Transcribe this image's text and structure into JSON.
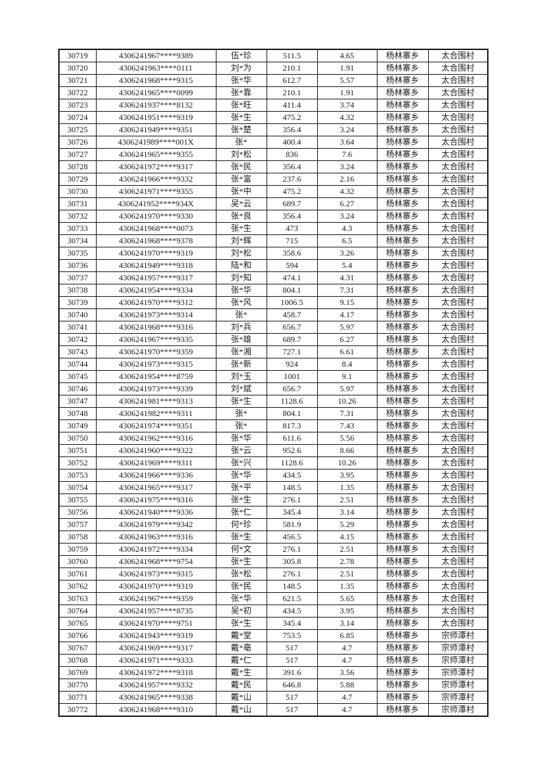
{
  "page": {
    "background_color": "#ffffff",
    "border_color": "#1a1a1a"
  },
  "table": {
    "township_name": "杨林寨乡",
    "villages": [
      "太合围村",
      "宗师潭村"
    ],
    "rows": [
      [
        "30719",
        "4306241967****9389",
        "伍*珍",
        "511.5",
        "4.65",
        "杨林寨乡",
        "太合围村"
      ],
      [
        "30720",
        "4306241963****0111",
        "刘*为",
        "210.1",
        "1.91",
        "杨林寨乡",
        "太合围村"
      ],
      [
        "30721",
        "4306241968****9315",
        "张*华",
        "612.7",
        "5.57",
        "杨林寨乡",
        "太合围村"
      ],
      [
        "30722",
        "4306241965****0099",
        "张*靠",
        "210.1",
        "1.91",
        "杨林寨乡",
        "太合围村"
      ],
      [
        "30723",
        "4306241937****8132",
        "张*旺",
        "411.4",
        "3.74",
        "杨林寨乡",
        "太合围村"
      ],
      [
        "30724",
        "4306241951****9319",
        "张*生",
        "475.2",
        "4.32",
        "杨林寨乡",
        "太合围村"
      ],
      [
        "30725",
        "4306241949****9351",
        "张*楚",
        "356.4",
        "3.24",
        "杨林寨乡",
        "太合围村"
      ],
      [
        "30726",
        "4306241989****001X",
        "张*",
        "400.4",
        "3.64",
        "杨林寨乡",
        "太合围村"
      ],
      [
        "30727",
        "4306241965****9355",
        "刘*松",
        "836",
        "7.6",
        "杨林寨乡",
        "太合围村"
      ],
      [
        "30728",
        "4306241972****9317",
        "张*民",
        "356.4",
        "3.24",
        "杨林寨乡",
        "太合围村"
      ],
      [
        "30729",
        "4306241966****9332",
        "张*富",
        "237.6",
        "2.16",
        "杨林寨乡",
        "太合围村"
      ],
      [
        "30730",
        "4306241971****9355",
        "张*中",
        "475.2",
        "4.32",
        "杨林寨乡",
        "太合围村"
      ],
      [
        "30731",
        "4306241952****934X",
        "吴*云",
        "689.7",
        "6.27",
        "杨林寨乡",
        "太合围村"
      ],
      [
        "30732",
        "4306241970****9330",
        "张*良",
        "356.4",
        "3.24",
        "杨林寨乡",
        "太合围村"
      ],
      [
        "30733",
        "4306241968****0073",
        "张*生",
        "473",
        "4.3",
        "杨林寨乡",
        "太合围村"
      ],
      [
        "30734",
        "4306241968****9378",
        "刘*辉",
        "715",
        "6.5",
        "杨林寨乡",
        "太合围村"
      ],
      [
        "30735",
        "4306241970****9319",
        "刘*松",
        "358.6",
        "3.26",
        "杨林寨乡",
        "太合围村"
      ],
      [
        "30736",
        "4306241949****9318",
        "陆*和",
        "594",
        "5.4",
        "杨林寨乡",
        "太合围村"
      ],
      [
        "30737",
        "4306241957****9317",
        "刘*知",
        "474.1",
        "4.31",
        "杨林寨乡",
        "太合围村"
      ],
      [
        "30738",
        "4306241954****9334",
        "张*华",
        "804.1",
        "7.31",
        "杨林寨乡",
        "太合围村"
      ],
      [
        "30739",
        "4306241970****9312",
        "张*风",
        "1006.5",
        "9.15",
        "杨林寨乡",
        "太合围村"
      ],
      [
        "30740",
        "4306241973****9314",
        "张*",
        "458.7",
        "4.17",
        "杨林寨乡",
        "太合围村"
      ],
      [
        "30741",
        "4306241968****9316",
        "刘*兵",
        "656.7",
        "5.97",
        "杨林寨乡",
        "太合围村"
      ],
      [
        "30742",
        "4306241967****9335",
        "张*雄",
        "689.7",
        "6.27",
        "杨林寨乡",
        "太合围村"
      ],
      [
        "30743",
        "4306241970****9359",
        "张*湘",
        "727.1",
        "6.61",
        "杨林寨乡",
        "太合围村"
      ],
      [
        "30744",
        "4306241973****9315",
        "张*新",
        "924",
        "8.4",
        "杨林寨乡",
        "太合围村"
      ],
      [
        "30745",
        "4306241954****8759",
        "刘*玉",
        "1001",
        "9.1",
        "杨林寨乡",
        "太合围村"
      ],
      [
        "30746",
        "4306241973****9339",
        "刘*斌",
        "656.7",
        "5.97",
        "杨林寨乡",
        "太合围村"
      ],
      [
        "30747",
        "4306241981****9313",
        "张*生",
        "1128.6",
        "10.26",
        "杨林寨乡",
        "太合围村"
      ],
      [
        "30748",
        "4306241982****9311",
        "张*",
        "804.1",
        "7.31",
        "杨林寨乡",
        "太合围村"
      ],
      [
        "30749",
        "4306241974****9351",
        "张*",
        "817.3",
        "7.43",
        "杨林寨乡",
        "太合围村"
      ],
      [
        "30750",
        "4306241962****9316",
        "张*华",
        "611.6",
        "5.56",
        "杨林寨乡",
        "太合围村"
      ],
      [
        "30751",
        "4306241960****9322",
        "张*云",
        "952.6",
        "8.66",
        "杨林寨乡",
        "太合围村"
      ],
      [
        "30752",
        "4306241969****9311",
        "张*兴",
        "1128.6",
        "10.26",
        "杨林寨乡",
        "太合围村"
      ],
      [
        "30753",
        "4306241966****9336",
        "张*华",
        "434.5",
        "3.95",
        "杨林寨乡",
        "太合围村"
      ],
      [
        "30754",
        "4306241965****9317",
        "张*平",
        "148.5",
        "1.35",
        "杨林寨乡",
        "太合围村"
      ],
      [
        "30755",
        "4306241975****9316",
        "张*生",
        "276.1",
        "2.51",
        "杨林寨乡",
        "太合围村"
      ],
      [
        "30756",
        "4306241940****9336",
        "张*仁",
        "345.4",
        "3.14",
        "杨林寨乡",
        "太合围村"
      ],
      [
        "30757",
        "4306241979****9342",
        "何*珍",
        "581.9",
        "5.29",
        "杨林寨乡",
        "太合围村"
      ],
      [
        "30758",
        "4306241963****9316",
        "张*生",
        "456.5",
        "4.15",
        "杨林寨乡",
        "太合围村"
      ],
      [
        "30759",
        "4306241972****9334",
        "何*文",
        "276.1",
        "2.51",
        "杨林寨乡",
        "太合围村"
      ],
      [
        "30760",
        "4306241968****9754",
        "张*生",
        "305.8",
        "2.78",
        "杨林寨乡",
        "太合围村"
      ],
      [
        "30761",
        "4306241973****9315",
        "张*松",
        "276.1",
        "2.51",
        "杨林寨乡",
        "太合围村"
      ],
      [
        "30762",
        "4306241970****9319",
        "张*民",
        "148.5",
        "1.35",
        "杨林寨乡",
        "太合围村"
      ],
      [
        "30763",
        "4306241967****9359",
        "张*华",
        "621.5",
        "5.65",
        "杨林寨乡",
        "太合围村"
      ],
      [
        "30764",
        "4306241957****8735",
        "吴*初",
        "434.5",
        "3.95",
        "杨林寨乡",
        "太合围村"
      ],
      [
        "30765",
        "4306241970****9751",
        "张*生",
        "345.4",
        "3.14",
        "杨林寨乡",
        "太合围村"
      ],
      [
        "30766",
        "4306241943****9319",
        "戴*堂",
        "753.5",
        "6.85",
        "杨林寨乡",
        "宗师潭村"
      ],
      [
        "30767",
        "4306241969****9317",
        "戴*亳",
        "517",
        "4.7",
        "杨林寨乡",
        "宗师潭村"
      ],
      [
        "30768",
        "4306241971****9333",
        "戴*仁",
        "517",
        "4.7",
        "杨林寨乡",
        "宗师潭村"
      ],
      [
        "30769",
        "4306241972****9318",
        "戴*生",
        "391.6",
        "3.56",
        "杨林寨乡",
        "宗师潭村"
      ],
      [
        "30770",
        "4306241957****9332",
        "戴*民",
        "646.8",
        "5.88",
        "杨林寨乡",
        "宗师潭村"
      ],
      [
        "30771",
        "4306241965****9338",
        "戴*山",
        "517",
        "4.7",
        "杨林寨乡",
        "宗师潭村"
      ],
      [
        "30772",
        "4306241968****9310",
        "戴*山",
        "517",
        "4.7",
        "杨林寨乡",
        "宗师潭村"
      ]
    ]
  }
}
